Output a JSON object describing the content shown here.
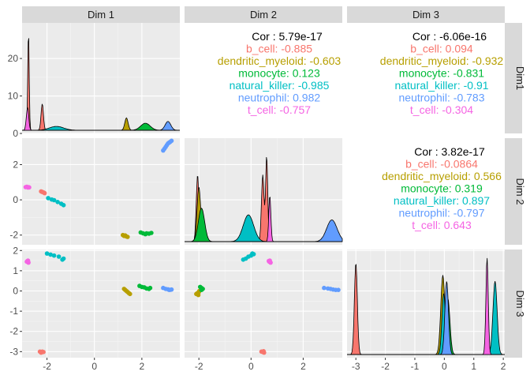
{
  "chart_data": {
    "type": "pairs",
    "variables": [
      "Dim 1",
      "Dim 2",
      "Dim 3"
    ],
    "row_strip_labels": [
      "Dim1",
      "Dim 2",
      "Dim 3"
    ],
    "groups": [
      "b_cell",
      "dendritic_myeloid",
      "monocyte",
      "natural_killer",
      "neutrophil",
      "t_cell"
    ],
    "colors": {
      "b_cell": "#F8766D",
      "dendritic_myeloid": "#B79F00",
      "monocyte": "#00BA38",
      "natural_killer": "#00BFC4",
      "neutrophil": "#619CFF",
      "t_cell": "#F564E3"
    },
    "x_ticks": {
      "Dim 1": [
        "-2",
        "0",
        "2"
      ],
      "Dim 2": [
        "-2",
        "0",
        "2"
      ],
      "Dim 3": [
        "-3",
        "-2",
        "-1",
        "0",
        "1",
        "2"
      ]
    },
    "y_ticks": {
      "row1": [
        "0",
        "10",
        "20"
      ],
      "row2": [
        "-2",
        "0",
        "2"
      ],
      "row3": [
        "-3",
        "-2",
        "-1",
        "0",
        "1",
        "2"
      ]
    },
    "correlations": [
      {
        "cell": "row1-col2",
        "title": "Cor : 5.79e-17",
        "values": [
          {
            "group": "b_cell",
            "text": "b_cell: -0.885"
          },
          {
            "group": "dendritic_myeloid",
            "text": "dendritic_myeloid: -0.603"
          },
          {
            "group": "monocyte",
            "text": "monocyte: 0.123"
          },
          {
            "group": "natural_killer",
            "text": "natural_killer: -0.985"
          },
          {
            "group": "neutrophil",
            "text": "neutrophil: 0.982"
          },
          {
            "group": "t_cell",
            "text": "t_cell: -0.757"
          }
        ]
      },
      {
        "cell": "row1-col3",
        "title": "Cor : -6.06e-16",
        "values": [
          {
            "group": "b_cell",
            "text": "b_cell: 0.094"
          },
          {
            "group": "dendritic_myeloid",
            "text": "dendritic_myeloid: -0.932"
          },
          {
            "group": "monocyte",
            "text": "monocyte: -0.831"
          },
          {
            "group": "natural_killer",
            "text": "natural_killer: -0.91"
          },
          {
            "group": "neutrophil",
            "text": "neutrophil: -0.783"
          },
          {
            "group": "t_cell",
            "text": "t_cell: -0.304"
          }
        ]
      },
      {
        "cell": "row2-col3",
        "title": "Cor : 3.82e-17",
        "values": [
          {
            "group": "b_cell",
            "text": "b_cell: -0.0864"
          },
          {
            "group": "dendritic_myeloid",
            "text": "dendritic_myeloid: 0.566"
          },
          {
            "group": "monocyte",
            "text": "monocyte: 0.319"
          },
          {
            "group": "natural_killer",
            "text": "natural_killer: 0.897"
          },
          {
            "group": "neutrophil",
            "text": "neutrophil: -0.797"
          },
          {
            "group": "t_cell",
            "text": "t_cell: 0.643"
          }
        ]
      }
    ],
    "scatter": {
      "row2-col1": {
        "xlim": [
          -3.05,
          3.6
        ],
        "ylim": [
          -2.55,
          3.5
        ],
        "points": {
          "t_cell": [
            [
              -2.9,
              0.72
            ],
            [
              -2.85,
              0.74
            ],
            [
              -2.8,
              0.7
            ],
            [
              -2.78,
              0.72
            ],
            [
              -2.75,
              0.71
            ]
          ],
          "b_cell": [
            [
              -2.25,
              0.48
            ],
            [
              -2.2,
              0.45
            ],
            [
              -2.15,
              0.42
            ],
            [
              -2.1,
              0.38
            ]
          ],
          "natural_killer": [
            [
              -1.95,
              0.1
            ],
            [
              -1.8,
              0.02
            ],
            [
              -1.7,
              -0.02
            ],
            [
              -1.55,
              -0.12
            ],
            [
              -1.4,
              -0.22
            ],
            [
              -1.3,
              -0.3
            ]
          ],
          "dendritic_myeloid": [
            [
              1.2,
              -2.0
            ],
            [
              1.25,
              -2.05
            ],
            [
              1.3,
              -2.02
            ],
            [
              1.35,
              -2.08
            ],
            [
              1.4,
              -2.1
            ]
          ],
          "monocyte": [
            [
              1.95,
              -1.85
            ],
            [
              2.05,
              -1.9
            ],
            [
              2.15,
              -1.95
            ],
            [
              2.2,
              -1.9
            ],
            [
              2.3,
              -1.92
            ],
            [
              2.4,
              -1.88
            ]
          ],
          "neutrophil": [
            [
              2.9,
              2.8
            ],
            [
              2.95,
              2.9
            ],
            [
              3.0,
              3.0
            ],
            [
              3.05,
              3.1
            ],
            [
              3.1,
              3.2
            ],
            [
              3.15,
              3.25
            ],
            [
              3.2,
              3.3
            ],
            [
              3.25,
              3.35
            ]
          ]
        }
      },
      "row3-col1": {
        "xlim": [
          -3.05,
          3.6
        ],
        "ylim": [
          -3.3,
          2.05
        ],
        "points": {
          "t_cell": [
            [
              -2.85,
              1.45
            ],
            [
              -2.8,
              1.5
            ],
            [
              -2.78,
              1.4
            ],
            [
              -2.82,
              1.48
            ]
          ],
          "natural_killer": [
            [
              -2.0,
              1.85
            ],
            [
              -1.85,
              1.8
            ],
            [
              -1.7,
              1.75
            ],
            [
              -1.5,
              1.7
            ],
            [
              -1.35,
              1.55
            ],
            [
              -1.3,
              1.6
            ]
          ],
          "b_cell": [
            [
              -2.3,
              -3.0
            ],
            [
              -2.25,
              -3.05
            ],
            [
              -2.2,
              -3.0
            ],
            [
              -2.15,
              -3.02
            ]
          ],
          "dendritic_myeloid": [
            [
              1.25,
              0.1
            ],
            [
              1.3,
              0.05
            ],
            [
              1.35,
              0.0
            ],
            [
              1.4,
              -0.05
            ],
            [
              1.45,
              -0.1
            ],
            [
              1.5,
              -0.15
            ]
          ],
          "monocyte": [
            [
              1.9,
              0.25
            ],
            [
              2.0,
              0.2
            ],
            [
              2.1,
              0.18
            ],
            [
              2.2,
              0.12
            ],
            [
              2.3,
              0.1
            ],
            [
              2.35,
              0.15
            ]
          ],
          "neutrophil": [
            [
              2.9,
              0.15
            ],
            [
              3.0,
              0.1
            ],
            [
              3.1,
              0.08
            ],
            [
              3.15,
              0.05
            ],
            [
              3.2,
              0.06
            ],
            [
              3.25,
              0.07
            ]
          ]
        }
      },
      "row3-col2": {
        "xlim": [
          -2.55,
          3.5
        ],
        "ylim": [
          -3.3,
          2.05
        ],
        "points": {
          "dendritic_myeloid": [
            [
              -2.1,
              -0.15
            ],
            [
              -2.05,
              -0.1
            ],
            [
              -2.0,
              -0.05
            ],
            [
              -1.98,
              0.0
            ],
            [
              -2.02,
              -0.2
            ]
          ],
          "monocyte": [
            [
              -1.95,
              0.2
            ],
            [
              -1.9,
              0.15
            ],
            [
              -1.85,
              0.1
            ],
            [
              -1.9,
              0.05
            ]
          ],
          "natural_killer": [
            [
              -0.3,
              1.55
            ],
            [
              -0.2,
              1.6
            ],
            [
              -0.1,
              1.7
            ],
            [
              0.0,
              1.75
            ],
            [
              0.05,
              1.85
            ],
            [
              0.1,
              1.82
            ]
          ],
          "t_cell": [
            [
              0.7,
              1.45
            ],
            [
              0.72,
              1.5
            ],
            [
              0.75,
              1.4
            ],
            [
              0.68,
              1.48
            ]
          ],
          "b_cell": [
            [
              0.4,
              -3.0
            ],
            [
              0.45,
              -3.02
            ],
            [
              0.5,
              -3.05
            ],
            [
              0.48,
              -2.98
            ]
          ],
          "neutrophil": [
            [
              2.8,
              0.15
            ],
            [
              2.95,
              0.12
            ],
            [
              3.05,
              0.1
            ],
            [
              3.15,
              0.07
            ],
            [
              3.25,
              0.05
            ],
            [
              3.35,
              0.05
            ]
          ]
        }
      }
    },
    "densities": {
      "row1-col1": {
        "xlim": [
          -3.05,
          3.6
        ],
        "ymax": 29.5,
        "peaks": [
          {
            "group": "t_cell",
            "center": -2.82,
            "height": 6.5,
            "width": 0.05
          },
          {
            "group": "b_cell",
            "center": -2.78,
            "height": 28,
            "width": 0.03
          },
          {
            "group": "b_cell",
            "center": -2.2,
            "height": 7.5,
            "width": 0.05
          },
          {
            "group": "natural_killer",
            "center": -1.6,
            "height": 1.1,
            "width": 0.3
          },
          {
            "group": "dendritic_myeloid",
            "center": 1.35,
            "height": 3.5,
            "width": 0.07
          },
          {
            "group": "monocyte",
            "center": 2.15,
            "height": 2.0,
            "width": 0.2
          },
          {
            "group": "neutrophil",
            "center": 3.1,
            "height": 2.5,
            "width": 0.12
          }
        ]
      },
      "row2-col2": {
        "xlim": [
          -2.55,
          3.5
        ],
        "ymax": 1.2,
        "peaks": [
          {
            "group": "b_cell",
            "center": -2.05,
            "height": 0.8,
            "width": 0.05
          },
          {
            "group": "dendritic_myeloid",
            "center": -2.0,
            "height": 0.65,
            "width": 0.07
          },
          {
            "group": "monocyte",
            "center": -1.9,
            "height": 0.4,
            "width": 0.12
          },
          {
            "group": "natural_killer",
            "center": -0.1,
            "height": 0.32,
            "width": 0.2
          },
          {
            "group": "b_cell",
            "center": 0.45,
            "height": 0.8,
            "width": 0.05
          },
          {
            "group": "t_cell",
            "center": 0.72,
            "height": 0.55,
            "width": 0.04
          },
          {
            "group": "b_cell",
            "center": 0.6,
            "height": 1.02,
            "width": 0.04
          },
          {
            "group": "neutrophil",
            "center": 3.1,
            "height": 0.26,
            "width": 0.2
          }
        ]
      },
      "row3-col3": {
        "xlim": [
          -3.3,
          2.05
        ],
        "ymax": 1.0,
        "peaks": [
          {
            "group": "b_cell",
            "center": -3.0,
            "height": 0.9,
            "width": 0.05
          },
          {
            "group": "dendritic_myeloid",
            "center": -0.05,
            "height": 0.78,
            "width": 0.07
          },
          {
            "group": "monocyte",
            "center": 0.12,
            "height": 0.55,
            "width": 0.07
          },
          {
            "group": "natural_killer",
            "center": -0.02,
            "height": 0.6,
            "width": 0.06
          },
          {
            "group": "neutrophil",
            "center": 0.08,
            "height": 0.72,
            "width": 0.06
          },
          {
            "group": "t_cell",
            "center": 1.45,
            "height": 0.95,
            "width": 0.04
          },
          {
            "group": "natural_killer",
            "center": 1.72,
            "height": 0.72,
            "width": 0.07
          }
        ]
      }
    }
  }
}
